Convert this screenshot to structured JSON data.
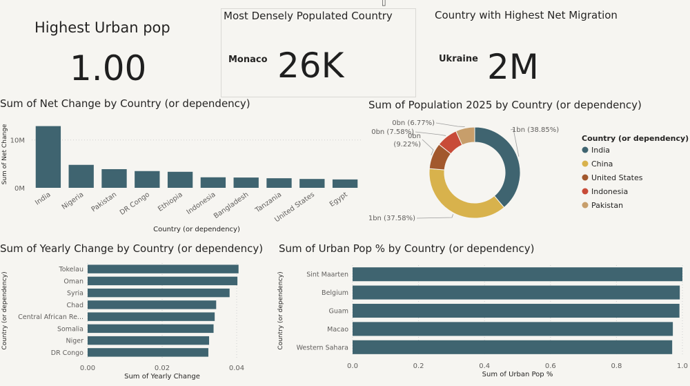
{
  "kpis": {
    "urban": {
      "title": "Highest Urban pop",
      "value": "1.00"
    },
    "density": {
      "title": "Most Densely Populated Country",
      "category": "Monaco",
      "value": "26K"
    },
    "migration": {
      "title": "Country with Highest Net Migration",
      "category": "Ukraine",
      "value": "2M"
    }
  },
  "toolbar": {
    "pin_icon": "pin-icon",
    "more_icon": "more-options-icon"
  },
  "chart_data": [
    {
      "id": "net_change",
      "type": "bar",
      "title": "Sum of Net Change by Country (or dependency)",
      "xlabel": "Country (or dependency)",
      "ylabel": "Sum of Net Change",
      "categories": [
        "India",
        "Nigeria",
        "Pakistan",
        "DR Congo",
        "Ethiopia",
        "Indonesia",
        "Bangladesh",
        "Tanzania",
        "United States",
        "Egypt"
      ],
      "values": [
        12900000,
        4800000,
        3900000,
        3500000,
        3350000,
        2200000,
        2150000,
        2000000,
        1850000,
        1750000
      ],
      "yticks": [
        0,
        10000000
      ],
      "ytick_labels": [
        "0M",
        "10M"
      ],
      "ylim": [
        0,
        14000000
      ],
      "color": "#3f6470"
    },
    {
      "id": "population",
      "type": "pie",
      "title": "Sum of Population 2025 by Country (or dependency)",
      "legend_title": "Country (or dependency)",
      "legend_position": "right",
      "slices": [
        {
          "name": "India",
          "value": 38.85,
          "label": "1bn (38.85%)",
          "color": "#3f6470"
        },
        {
          "name": "China",
          "value": 37.58,
          "label": "1bn (37.58%)",
          "color": "#d8b24c"
        },
        {
          "name": "United States",
          "value": 9.22,
          "label_top": "0bn",
          "label_bottom": "(9.22%)",
          "color": "#a2582d"
        },
        {
          "name": "Indonesia",
          "value": 7.58,
          "label": "0bn (7.58%)",
          "color": "#c84b38"
        },
        {
          "name": "Pakistan",
          "value": 6.77,
          "label": "0bn (6.77%)",
          "color": "#c79e6b"
        }
      ]
    },
    {
      "id": "yearly_change",
      "type": "bar",
      "orientation": "horizontal",
      "title": "Sum of Yearly Change by Country (or dependency)",
      "xlabel": "Sum of Yearly Change",
      "ylabel": "Country (or dependency)",
      "categories": [
        "Tokelau",
        "Oman",
        "Syria",
        "Chad",
        "Central African Re...",
        "Somalia",
        "Niger",
        "DR Congo"
      ],
      "values": [
        0.0405,
        0.0402,
        0.0381,
        0.0345,
        0.0341,
        0.0338,
        0.0326,
        0.0324
      ],
      "xticks": [
        0,
        0.02,
        0.04
      ],
      "xtick_labels": [
        "0.00",
        "0.02",
        "0.04"
      ],
      "xlim": [
        0,
        0.04
      ],
      "color": "#3f6470"
    },
    {
      "id": "urban_pop",
      "type": "bar",
      "orientation": "horizontal",
      "title": "Sum of Urban Pop % by Country (or dependency)",
      "xlabel": "Sum of Urban Pop %",
      "ylabel": "Country (or dependency)",
      "categories": [
        "Sint Maarten",
        "Belgium",
        "Guam",
        "Macao",
        "Western Sahara"
      ],
      "values": [
        1.0,
        0.992,
        0.991,
        0.971,
        0.969
      ],
      "xticks": [
        0,
        0.2,
        0.4,
        0.6,
        0.8,
        1.0
      ],
      "xtick_labels": [
        "0.0",
        "0.2",
        "0.4",
        "0.6",
        "0.8",
        "1.0"
      ],
      "xlim": [
        0,
        1.0
      ],
      "color": "#3f6470"
    }
  ]
}
